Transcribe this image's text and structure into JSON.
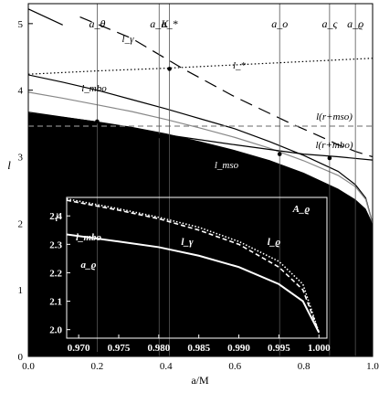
{
  "chart_data": [
    {
      "type": "line",
      "xlabel": "a/M",
      "ylabel": "l",
      "xlim": [
        0,
        1
      ],
      "ylim": [
        0,
        5.3
      ],
      "xticks": [
        "0.0",
        "0.2",
        "0.4",
        "0.6",
        "0.8",
        "1.0"
      ],
      "yticks": [
        "0",
        "1",
        "2",
        "3",
        "4",
        "5"
      ],
      "grid": false,
      "shaded_region": {
        "color": "#000000",
        "boundary": [
          [
            0,
            3.66
          ],
          [
            0.1,
            3.6
          ],
          [
            0.2,
            3.53
          ],
          [
            0.3,
            3.45
          ],
          [
            0.4,
            3.35
          ],
          [
            0.5,
            3.23
          ],
          [
            0.6,
            3.1
          ],
          [
            0.7,
            2.95
          ],
          [
            0.8,
            2.76
          ],
          [
            0.9,
            2.52
          ],
          [
            0.95,
            2.36
          ],
          [
            0.98,
            2.22
          ],
          [
            1.0,
            2.0
          ]
        ]
      },
      "series": [
        {
          "name": "",
          "style": "solid",
          "color": "#000000",
          "x": [
            0.0,
            0.1,
            0.2,
            0.3,
            0.4,
            0.5,
            0.6,
            0.7,
            0.8,
            0.9,
            0.95,
            0.98,
            1.0
          ],
          "y": [
            4.23,
            4.12,
            4.0,
            3.86,
            3.72,
            3.57,
            3.42,
            3.23,
            3.02,
            2.78,
            2.58,
            2.38,
            2.0
          ]
        },
        {
          "name": "",
          "style": "solid",
          "color": "#888888",
          "x": [
            0.0,
            0.1,
            0.2,
            0.3,
            0.4,
            0.5,
            0.6,
            0.7,
            0.8,
            0.9,
            0.95,
            0.98,
            1.0
          ],
          "y": [
            3.97,
            3.88,
            3.78,
            3.68,
            3.56,
            3.43,
            3.29,
            3.13,
            2.94,
            2.72,
            2.55,
            2.36,
            2.0
          ]
        },
        {
          "name": "",
          "style": "solid",
          "color": "#000000",
          "x": [
            0.0,
            0.2,
            0.4,
            0.6,
            0.8,
            0.9,
            1.0
          ],
          "y": [
            3.67,
            3.52,
            3.33,
            3.18,
            3.04,
            3.0,
            2.95
          ]
        },
        {
          "name": "",
          "style": "dotted",
          "color": "#000000",
          "x": [
            0.0,
            0.2,
            0.4,
            0.6,
            0.8,
            1.0
          ],
          "y": [
            4.24,
            4.29,
            4.33,
            4.38,
            4.43,
            4.48
          ]
        },
        {
          "name": "",
          "style": "long-dash",
          "color": "#000000",
          "x": [
            0.15,
            0.3,
            0.45,
            0.6,
            0.75,
            0.85,
            0.9,
            0.95,
            1.0
          ],
          "y": [
            5.1,
            4.78,
            4.32,
            3.9,
            3.53,
            3.3,
            3.18,
            3.08,
            3.0
          ]
        },
        {
          "name": "",
          "style": "dashed",
          "color": "#888888",
          "x": [
            0.0,
            1.0
          ],
          "y": [
            3.46,
            3.46
          ]
        },
        {
          "name": "",
          "style": "solid",
          "color": "#000000",
          "x": [
            0.0,
            0.1
          ],
          "y": [
            5.22,
            4.98
          ]
        }
      ],
      "vertical_lines": [
        {
          "label": "a_θ",
          "x": 0.2
        },
        {
          "label": "a_K",
          "x": 0.38
        },
        {
          "label": "a_*",
          "x": 0.41
        },
        {
          "label": "a_o",
          "x": 0.73
        },
        {
          "label": "a_ς",
          "x": 0.875
        },
        {
          "label": "a_ϱ",
          "x": 0.95
        }
      ],
      "points": [
        {
          "x": 0.2,
          "y": 3.53
        },
        {
          "x": 0.38,
          "y": 3.31
        },
        {
          "x": 0.41,
          "y": 4.32
        },
        {
          "x": 0.73,
          "y": 3.04
        },
        {
          "x": 0.875,
          "y": 2.98
        }
      ],
      "annotations": [
        {
          "text": "l_γ"
        },
        {
          "text": "l_mbo"
        },
        {
          "text": "l_*"
        },
        {
          "text": "l(r+mso)"
        },
        {
          "text": "l(r+mbo)"
        },
        {
          "text": "l_mso"
        }
      ]
    },
    {
      "type": "line",
      "xlabel": "a/M",
      "ylabel": "l",
      "xlim": [
        0.9685,
        1.001
      ],
      "ylim": [
        1.97,
        2.465
      ],
      "xticks": [
        "0.970",
        "0.975",
        "0.980",
        "0.985",
        "0.990",
        "0.995",
        "1.000"
      ],
      "yticks": [
        "2.0",
        "2.1",
        "2.2",
        "2.3",
        "2.4"
      ],
      "grid": false,
      "series": [
        {
          "name": "",
          "style": "solid",
          "color": "#ffffff",
          "x": [
            0.9685,
            0.975,
            0.98,
            0.985,
            0.99,
            0.995,
            0.998,
            1.0
          ],
          "y": [
            2.335,
            2.31,
            2.29,
            2.26,
            2.22,
            2.16,
            2.1,
            1.99
          ]
        },
        {
          "name": "",
          "style": "dashed",
          "color": "#ffffff",
          "x": [
            0.9685,
            0.975,
            0.98,
            0.985,
            0.99,
            0.995,
            0.998,
            1.0
          ],
          "y": [
            2.455,
            2.42,
            2.39,
            2.35,
            2.3,
            2.22,
            2.14,
            1.99
          ]
        },
        {
          "name": "",
          "style": "dotted",
          "color": "#ffffff",
          "x": [
            0.9685,
            0.975,
            0.98,
            0.985,
            0.99,
            0.995,
            0.998,
            1.0
          ],
          "y": [
            2.46,
            2.425,
            2.395,
            2.36,
            2.31,
            2.24,
            2.16,
            1.99
          ]
        }
      ],
      "annotations": [
        {
          "text": "l_mbo"
        },
        {
          "text": "a_ϱ"
        },
        {
          "text": "l_γ"
        },
        {
          "text": "l_ϱ"
        },
        {
          "text": "A_ϱ"
        }
      ]
    }
  ]
}
